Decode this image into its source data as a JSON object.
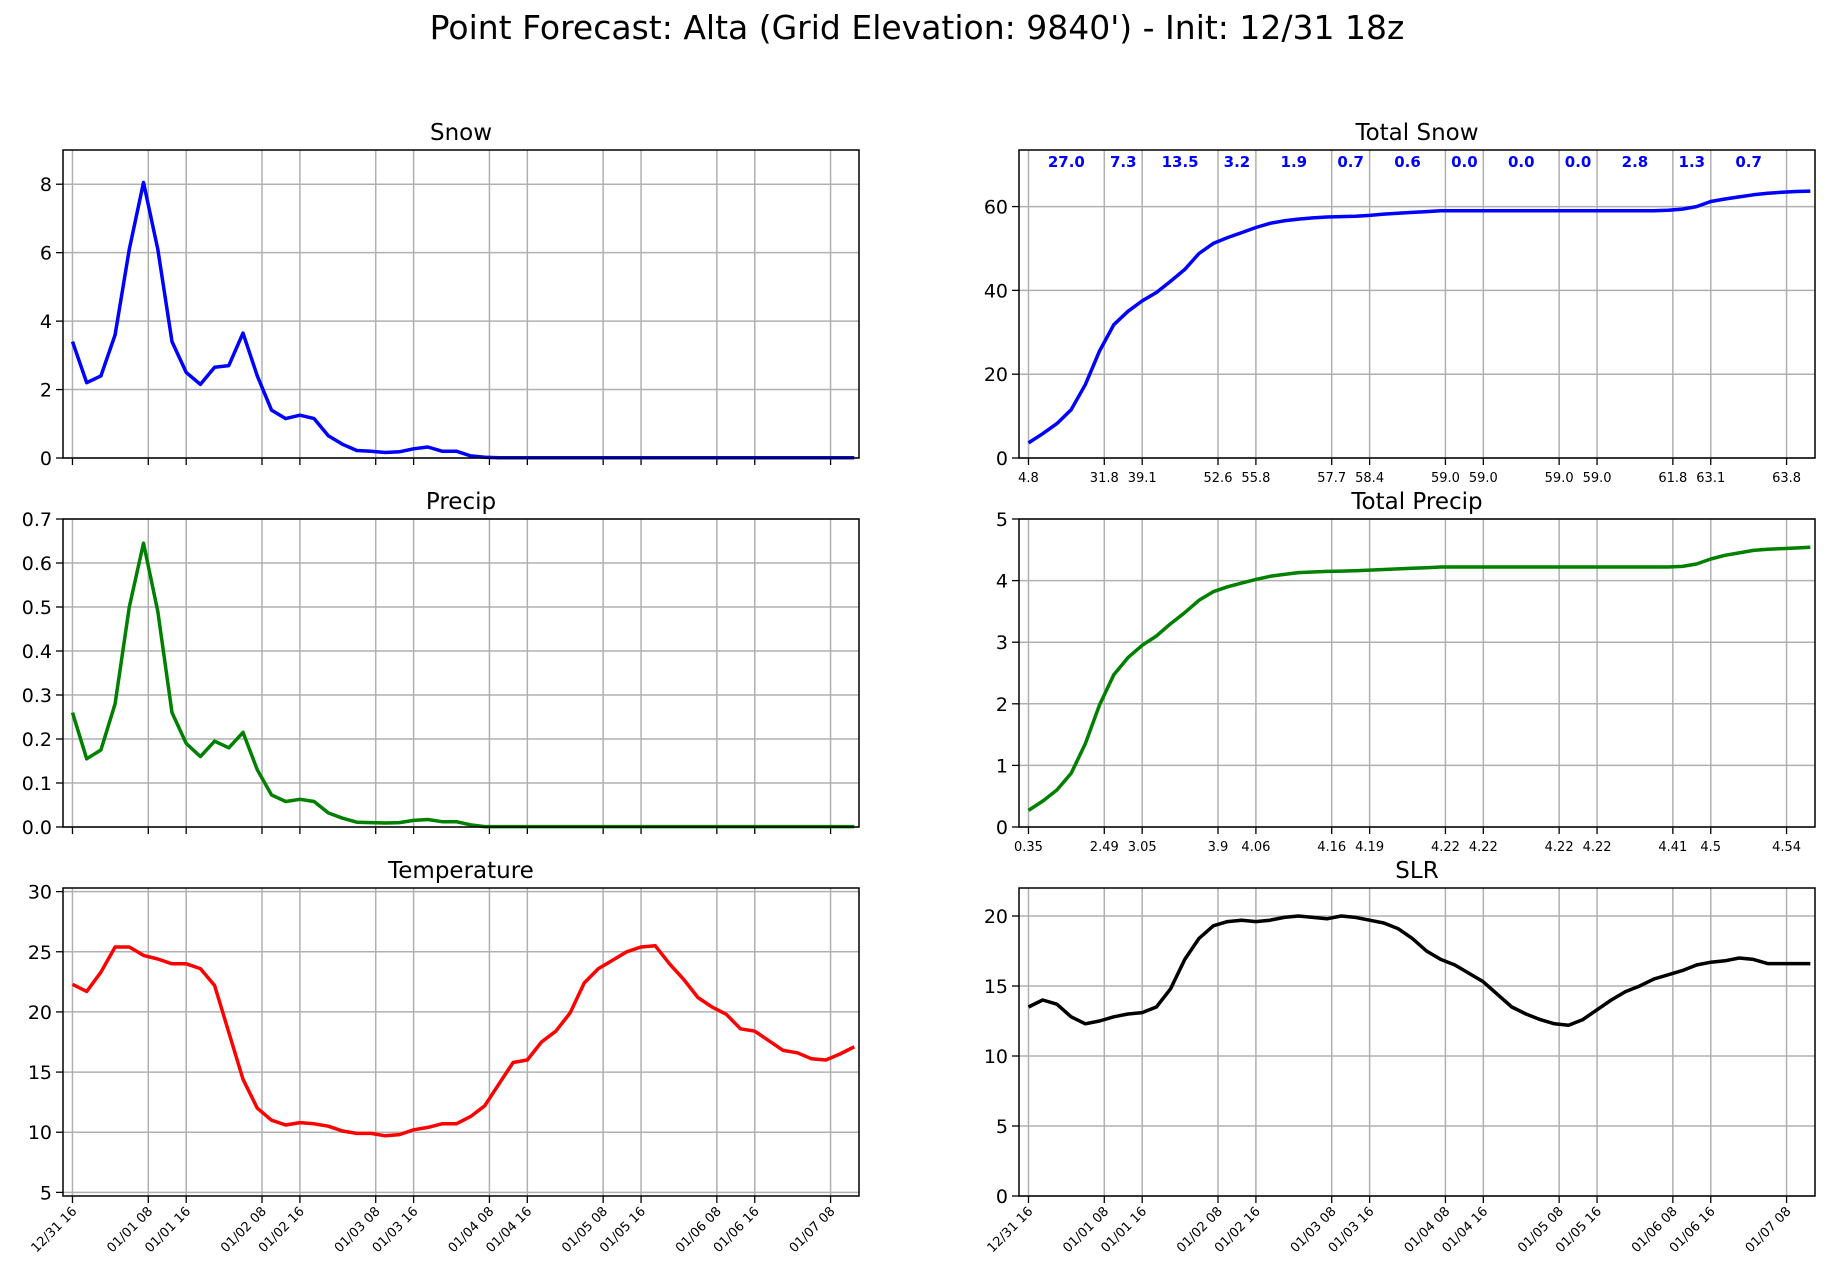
{
  "figure": {
    "suptitle": "Point Forecast: Alta (Grid Elevation: 9840') - Init: 12/31 18z"
  },
  "colors": {
    "snow": "#0000ff",
    "precip": "#008000",
    "temperature": "#ff0000",
    "slr": "#000000",
    "grid": "#b0b0b0"
  },
  "chart_data": [
    {
      "id": "snow",
      "title": "Snow",
      "type": "line",
      "color": "#0000ff",
      "x": [
        0,
        3,
        6,
        9,
        12,
        15,
        18,
        21,
        24,
        27,
        30,
        33,
        36,
        39,
        42,
        45,
        48,
        51,
        54,
        57,
        60,
        63,
        66,
        69,
        72,
        75,
        78,
        81,
        84,
        87,
        90,
        93,
        96,
        99,
        102,
        105,
        108,
        111,
        114,
        117,
        120,
        123,
        126,
        129,
        132,
        135,
        138,
        141,
        144,
        147,
        150,
        153,
        156,
        159,
        162,
        165
      ],
      "y": [
        3.4,
        2.2,
        2.4,
        3.6,
        6.1,
        8.05,
        6.1,
        3.4,
        2.5,
        2.15,
        2.65,
        2.7,
        3.65,
        2.4,
        1.4,
        1.15,
        1.25,
        1.15,
        0.65,
        0.4,
        0.22,
        0.2,
        0.16,
        0.18,
        0.27,
        0.32,
        0.2,
        0.2,
        0.06,
        0.02,
        0.01,
        0.01,
        0.01,
        0.01,
        0.01,
        0.01,
        0.01,
        0.01,
        0.01,
        0.01,
        0.01,
        0.01,
        0.01,
        0.01,
        0.01,
        0.01,
        0.01,
        0.01,
        0.01,
        0.01,
        0.01,
        0.01,
        0.01,
        0.01,
        0.01,
        0.01
      ],
      "ylim": [
        0,
        9
      ],
      "yticks": [
        0,
        2,
        4,
        6,
        8
      ],
      "ytick_labels": [
        "0",
        "2",
        "4",
        "6",
        "8"
      ],
      "show_xtick_labels": false
    },
    {
      "id": "total-snow",
      "title": "Total Snow",
      "type": "line",
      "color": "#0000ff",
      "x": [
        0,
        3,
        6,
        9,
        12,
        15,
        18,
        21,
        24,
        27,
        30,
        33,
        36,
        39,
        42,
        45,
        48,
        51,
        54,
        57,
        60,
        63,
        66,
        69,
        72,
        75,
        78,
        81,
        84,
        87,
        90,
        93,
        96,
        99,
        102,
        105,
        108,
        111,
        114,
        117,
        120,
        123,
        126,
        129,
        132,
        135,
        138,
        141,
        144,
        147,
        150,
        153,
        156,
        159,
        162,
        165
      ],
      "y": [
        3.6,
        5.8,
        8.2,
        11.5,
        17.5,
        25.5,
        31.8,
        35.0,
        37.5,
        39.5,
        42.2,
        45.0,
        48.8,
        51.2,
        52.6,
        53.8,
        55.0,
        56.0,
        56.6,
        57.0,
        57.3,
        57.5,
        57.6,
        57.7,
        57.9,
        58.2,
        58.4,
        58.6,
        58.8,
        59.0,
        59.0,
        59.0,
        59.0,
        59.0,
        59.0,
        59.0,
        59.0,
        59.0,
        59.0,
        59.0,
        59.0,
        59.0,
        59.0,
        59.0,
        59.0,
        59.1,
        59.4,
        60.0,
        61.2,
        61.8,
        62.3,
        62.8,
        63.2,
        63.4,
        63.6,
        63.7
      ],
      "ylim": [
        0,
        73.5
      ],
      "yticks": [
        0,
        20,
        40,
        60
      ],
      "ytick_labels": [
        "0",
        "20",
        "40",
        "60"
      ],
      "period_labels": [
        {
          "x": 8,
          "text": "27.0"
        },
        {
          "x": 20,
          "text": "7.3"
        },
        {
          "x": 32,
          "text": "13.5"
        },
        {
          "x": 44,
          "text": "3.2"
        },
        {
          "x": 56,
          "text": "1.9"
        },
        {
          "x": 68,
          "text": "0.7"
        },
        {
          "x": 80,
          "text": "0.6"
        },
        {
          "x": 92,
          "text": "0.0"
        },
        {
          "x": 104,
          "text": "0.0"
        },
        {
          "x": 116,
          "text": "0.0"
        },
        {
          "x": 128,
          "text": "2.8"
        },
        {
          "x": 140,
          "text": "1.3"
        },
        {
          "x": 152,
          "text": "0.7"
        }
      ],
      "xtick_values": [
        {
          "x": 0,
          "text": "4.8"
        },
        {
          "x": 16,
          "text": "31.8"
        },
        {
          "x": 24,
          "text": "39.1"
        },
        {
          "x": 40,
          "text": "52.6"
        },
        {
          "x": 48,
          "text": "55.8"
        },
        {
          "x": 64,
          "text": "57.7"
        },
        {
          "x": 72,
          "text": "58.4"
        },
        {
          "x": 88,
          "text": "59.0"
        },
        {
          "x": 96,
          "text": "59.0"
        },
        {
          "x": 112,
          "text": "59.0"
        },
        {
          "x": 120,
          "text": "59.0"
        },
        {
          "x": 136,
          "text": "61.8"
        },
        {
          "x": 144,
          "text": "63.1"
        },
        {
          "x": 160,
          "text": "63.8"
        }
      ]
    },
    {
      "id": "precip",
      "title": "Precip",
      "type": "line",
      "color": "#008000",
      "x": [
        0,
        3,
        6,
        9,
        12,
        15,
        18,
        21,
        24,
        27,
        30,
        33,
        36,
        39,
        42,
        45,
        48,
        51,
        54,
        57,
        60,
        63,
        66,
        69,
        72,
        75,
        78,
        81,
        84,
        87,
        90,
        93,
        96,
        99,
        102,
        105,
        108,
        111,
        114,
        117,
        120,
        123,
        126,
        129,
        132,
        135,
        138,
        141,
        144,
        147,
        150,
        153,
        156,
        159,
        162,
        165
      ],
      "y": [
        0.26,
        0.155,
        0.175,
        0.28,
        0.5,
        0.645,
        0.49,
        0.26,
        0.19,
        0.16,
        0.195,
        0.18,
        0.215,
        0.13,
        0.073,
        0.058,
        0.063,
        0.058,
        0.032,
        0.02,
        0.011,
        0.01,
        0.009,
        0.01,
        0.015,
        0.017,
        0.012,
        0.012,
        0.005,
        0.001,
        0.001,
        0.001,
        0.001,
        0.001,
        0.001,
        0.001,
        0.001,
        0.001,
        0.001,
        0.001,
        0.001,
        0.001,
        0.001,
        0.001,
        0.001,
        0.001,
        0.001,
        0.001,
        0.001,
        0.001,
        0.001,
        0.001,
        0.001,
        0.001,
        0.001,
        0.001
      ],
      "ylim": [
        0,
        0.7
      ],
      "yticks": [
        0,
        0.1,
        0.2,
        0.3,
        0.4,
        0.5,
        0.6,
        0.7
      ],
      "ytick_labels": [
        "0.0",
        "0.1",
        "0.2",
        "0.3",
        "0.4",
        "0.5",
        "0.6",
        "0.7"
      ],
      "show_xtick_labels": false
    },
    {
      "id": "total-precip",
      "title": "Total Precip",
      "type": "line",
      "color": "#008000",
      "x": [
        0,
        3,
        6,
        9,
        12,
        15,
        18,
        21,
        24,
        27,
        30,
        33,
        36,
        39,
        42,
        45,
        48,
        51,
        54,
        57,
        60,
        63,
        66,
        69,
        72,
        75,
        78,
        81,
        84,
        87,
        90,
        93,
        96,
        99,
        102,
        105,
        108,
        111,
        114,
        117,
        120,
        123,
        126,
        129,
        132,
        135,
        138,
        141,
        144,
        147,
        150,
        153,
        156,
        159,
        162,
        165
      ],
      "y": [
        0.27,
        0.42,
        0.6,
        0.87,
        1.35,
        1.98,
        2.47,
        2.75,
        2.95,
        3.1,
        3.3,
        3.48,
        3.68,
        3.82,
        3.9,
        3.96,
        4.02,
        4.07,
        4.1,
        4.13,
        4.14,
        4.15,
        4.155,
        4.16,
        4.17,
        4.18,
        4.19,
        4.2,
        4.21,
        4.22,
        4.22,
        4.22,
        4.22,
        4.22,
        4.22,
        4.22,
        4.22,
        4.22,
        4.22,
        4.22,
        4.22,
        4.22,
        4.22,
        4.22,
        4.22,
        4.22,
        4.23,
        4.27,
        4.35,
        4.41,
        4.45,
        4.49,
        4.51,
        4.52,
        4.53,
        4.54
      ],
      "ylim": [
        0,
        5
      ],
      "yticks": [
        0,
        1,
        2,
        3,
        4,
        5
      ],
      "ytick_labels": [
        "0",
        "1",
        "2",
        "3",
        "4",
        "5"
      ],
      "xtick_values": [
        {
          "x": 0,
          "text": "0.35"
        },
        {
          "x": 16,
          "text": "2.49"
        },
        {
          "x": 24,
          "text": "3.05"
        },
        {
          "x": 40,
          "text": "3.9"
        },
        {
          "x": 48,
          "text": "4.06"
        },
        {
          "x": 64,
          "text": "4.16"
        },
        {
          "x": 72,
          "text": "4.19"
        },
        {
          "x": 88,
          "text": "4.22"
        },
        {
          "x": 96,
          "text": "4.22"
        },
        {
          "x": 112,
          "text": "4.22"
        },
        {
          "x": 120,
          "text": "4.22"
        },
        {
          "x": 136,
          "text": "4.41"
        },
        {
          "x": 144,
          "text": "4.5"
        },
        {
          "x": 160,
          "text": "4.54"
        }
      ]
    },
    {
      "id": "temperature",
      "title": "Temperature",
      "type": "line",
      "color": "#ff0000",
      "x": [
        0,
        3,
        6,
        9,
        12,
        15,
        18,
        21,
        24,
        27,
        30,
        33,
        36,
        39,
        42,
        45,
        48,
        51,
        54,
        57,
        60,
        63,
        66,
        69,
        72,
        75,
        78,
        81,
        84,
        87,
        90,
        93,
        96,
        99,
        102,
        105,
        108,
        111,
        114,
        117,
        120,
        123,
        126,
        129,
        132,
        135,
        138,
        141,
        144,
        147,
        150,
        153,
        156,
        159,
        162,
        165
      ],
      "y": [
        22.3,
        21.7,
        23.3,
        25.4,
        25.4,
        24.7,
        24.4,
        24.0,
        24.0,
        23.6,
        22.2,
        18.3,
        14.4,
        12.0,
        11.0,
        10.6,
        10.8,
        10.7,
        10.5,
        10.1,
        9.9,
        9.9,
        9.7,
        9.8,
        10.2,
        10.4,
        10.7,
        10.7,
        11.3,
        12.2,
        14.0,
        15.8,
        16.0,
        17.5,
        18.4,
        19.9,
        22.4,
        23.6,
        24.3,
        25.0,
        25.4,
        25.5,
        24.0,
        22.7,
        21.2,
        20.4,
        19.8,
        18.6,
        18.4,
        17.6,
        16.8,
        16.6,
        16.1,
        16.0,
        16.5,
        17.1
      ],
      "ylim": [
        4.7,
        30.3
      ],
      "yticks": [
        5,
        10,
        15,
        20,
        25,
        30
      ],
      "ytick_labels": [
        "5",
        "10",
        "15",
        "20",
        "25",
        "30"
      ],
      "show_xtick_labels": true
    },
    {
      "id": "slr",
      "title": "SLR",
      "type": "line",
      "color": "#000000",
      "x": [
        0,
        3,
        6,
        9,
        12,
        15,
        18,
        21,
        24,
        27,
        30,
        33,
        36,
        39,
        42,
        45,
        48,
        51,
        54,
        57,
        60,
        63,
        66,
        69,
        72,
        75,
        78,
        81,
        84,
        87,
        90,
        93,
        96,
        99,
        102,
        105,
        108,
        111,
        114,
        117,
        120,
        123,
        126,
        129,
        132,
        135,
        138,
        141,
        144,
        147,
        150,
        153,
        156,
        159,
        162,
        165
      ],
      "y": [
        13.5,
        14.0,
        13.7,
        12.8,
        12.3,
        12.5,
        12.8,
        13.0,
        13.1,
        13.5,
        14.8,
        16.9,
        18.4,
        19.3,
        19.6,
        19.7,
        19.6,
        19.7,
        19.9,
        20.0,
        19.9,
        19.8,
        20.0,
        19.9,
        19.7,
        19.5,
        19.1,
        18.4,
        17.5,
        16.9,
        16.5,
        15.9,
        15.3,
        14.4,
        13.5,
        13.0,
        12.6,
        12.3,
        12.2,
        12.6,
        13.3,
        14.0,
        14.6,
        15.0,
        15.5,
        15.8,
        16.1,
        16.5,
        16.7,
        16.8,
        17.0,
        16.9,
        16.6,
        16.6,
        16.6,
        16.6
      ],
      "ylim": [
        0,
        22
      ],
      "yticks": [
        0,
        5,
        10,
        15,
        20
      ],
      "ytick_labels": [
        "0",
        "5",
        "10",
        "15",
        "20"
      ],
      "show_xtick_labels": true
    }
  ],
  "time_axis": {
    "xlim": [
      -2,
      166
    ],
    "ticks": [
      {
        "x": 0,
        "label": "12/31 16"
      },
      {
        "x": 16,
        "label": "01/01 08"
      },
      {
        "x": 24,
        "label": "01/01 16"
      },
      {
        "x": 40,
        "label": "01/02 08"
      },
      {
        "x": 48,
        "label": "01/02 16"
      },
      {
        "x": 64,
        "label": "01/03 08"
      },
      {
        "x": 72,
        "label": "01/03 16"
      },
      {
        "x": 88,
        "label": "01/04 08"
      },
      {
        "x": 96,
        "label": "01/04 16"
      },
      {
        "x": 112,
        "label": "01/05 08"
      },
      {
        "x": 120,
        "label": "01/05 16"
      },
      {
        "x": 136,
        "label": "01/06 08"
      },
      {
        "x": 144,
        "label": "01/06 16"
      },
      {
        "x": 160,
        "label": "01/07 08"
      }
    ]
  }
}
